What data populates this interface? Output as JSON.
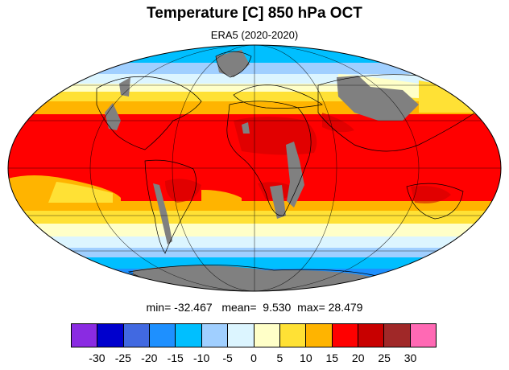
{
  "header": {
    "title": "Temperature [C] 850 hPa OCT",
    "subtitle": "ERA5 (2020-2020)"
  },
  "stats": {
    "min_label": "min=",
    "min_value": "-32.467",
    "mean_label": "mean=",
    "mean_value": "9.530",
    "max_label": "max=",
    "max_value": "28.479"
  },
  "colorbar": {
    "colors": [
      "#8a2be2",
      "#0000cd",
      "#4169e1",
      "#1e90ff",
      "#00bfff",
      "#a0cfff",
      "#dcf5ff",
      "#ffffc8",
      "#ffe135",
      "#ffb400",
      "#ff0000",
      "#c80000",
      "#a02828",
      "#ff69b4"
    ],
    "ticks": [
      "-30",
      "-25",
      "-20",
      "-15",
      "-10",
      "-5",
      "0",
      "5",
      "10",
      "15",
      "20",
      "25",
      "30"
    ]
  },
  "map": {
    "projection": "Mollweide",
    "variable": "Temperature [C]",
    "level": "850 hPa",
    "month": "OCT",
    "missing_color": "#808080"
  }
}
